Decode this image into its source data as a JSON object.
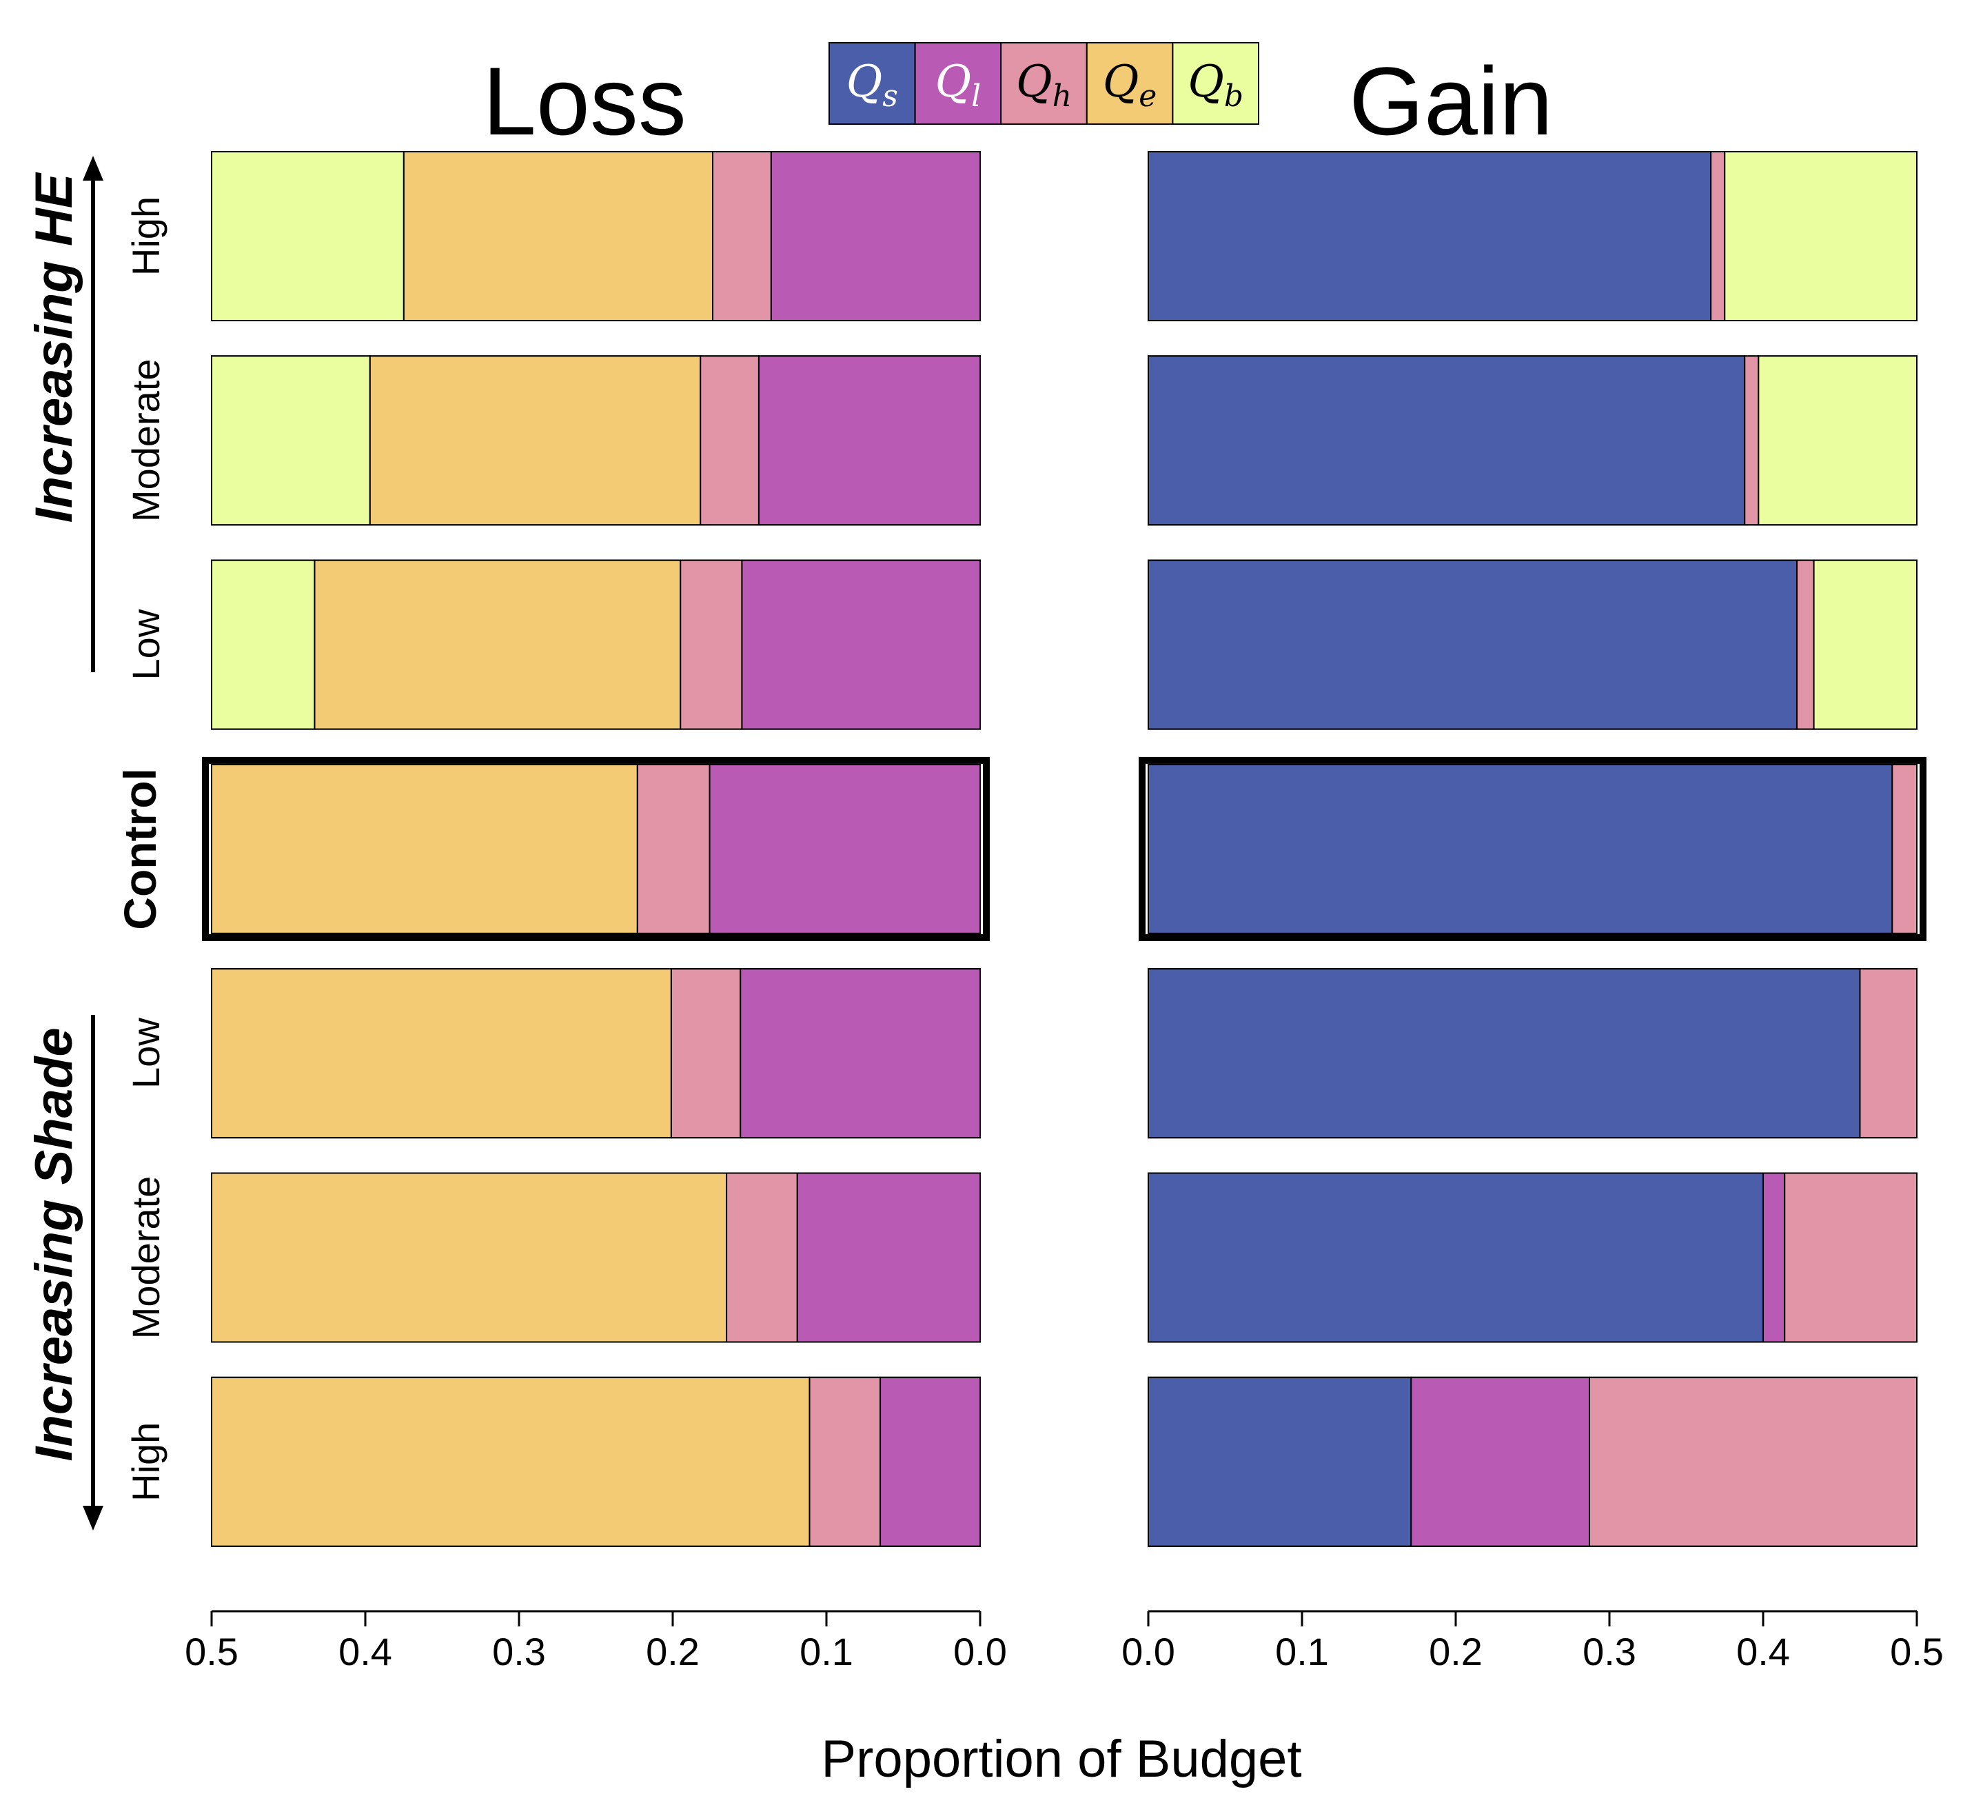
{
  "chart_data": {
    "type": "bar",
    "xlabel": "Proportion of Budget",
    "xlim": [
      0,
      0.5
    ],
    "x_ticks": [
      "0.0",
      "0.1",
      "0.2",
      "0.3",
      "0.4",
      "0.5"
    ],
    "x_ticks_loss": [
      "0.5",
      "0.4",
      "0.3",
      "0.2",
      "0.1",
      "0.0"
    ],
    "legend": [
      {
        "key": "Qs",
        "base": "Q",
        "sub": "s",
        "color": "#4b5eaa"
      },
      {
        "key": "Ql",
        "base": "Q",
        "sub": "l",
        "color": "#b95ab5"
      },
      {
        "key": "Qh",
        "base": "Q",
        "sub": "h",
        "color": "#e395a8"
      },
      {
        "key": "Qe",
        "base": "Q",
        "sub": "e",
        "color": "#f4cb75"
      },
      {
        "key": "Qb",
        "base": "Q",
        "sub": "b",
        "color": "#ebfe9f"
      }
    ],
    "legend_text_colors": {
      "Qs": "#ffffff",
      "Ql": "#ffffff",
      "Qh": "#000000",
      "Qe": "#000000",
      "Qb": "#000000"
    },
    "groups": [
      {
        "label": "Increasing HE",
        "direction": "up"
      },
      {
        "label": "Increasing Shade",
        "direction": "down"
      }
    ],
    "rows": [
      "High",
      "Moderate",
      "Low",
      "Control",
      "Low",
      "Moderate",
      "High"
    ],
    "control_index": 3,
    "panels": [
      {
        "title": "Loss",
        "reversed": true,
        "stack_order": [
          "Ql",
          "Qh",
          "Qe",
          "Qb"
        ],
        "series": [
          {
            "name": "Ql",
            "values": [
              0.136,
              0.144,
              0.155,
              0.176,
              0.156,
              0.119,
              0.065
            ]
          },
          {
            "name": "Qh",
            "values": [
              0.038,
              0.038,
              0.04,
              0.047,
              0.045,
              0.046,
              0.046
            ]
          },
          {
            "name": "Qe",
            "values": [
              0.201,
              0.215,
              0.238,
              0.277,
              0.299,
              0.335,
              0.389
            ]
          },
          {
            "name": "Qb",
            "values": [
              0.125,
              0.103,
              0.067,
              0.0,
              0.0,
              0.0,
              0.0
            ]
          }
        ]
      },
      {
        "title": "Gain",
        "reversed": false,
        "stack_order": [
          "Qs",
          "Ql",
          "Qh",
          "Qb"
        ],
        "series": [
          {
            "name": "Qs",
            "values": [
              0.366,
              0.388,
              0.422,
              0.484,
              0.463,
              0.4,
              0.171
            ]
          },
          {
            "name": "Ql",
            "values": [
              0.0,
              0.0,
              0.0,
              0.0,
              0.0,
              0.014,
              0.116
            ]
          },
          {
            "name": "Qh",
            "values": [
              0.009,
              0.009,
              0.011,
              0.016,
              0.037,
              0.086,
              0.213
            ]
          },
          {
            "name": "Qb",
            "values": [
              0.125,
              0.103,
              0.067,
              0.0,
              0.0,
              0.0,
              0.0
            ]
          }
        ]
      }
    ]
  }
}
